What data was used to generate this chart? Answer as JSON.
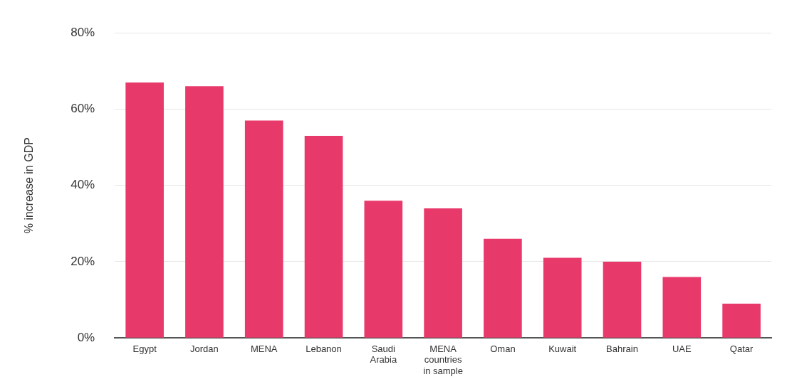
{
  "chart_data": {
    "type": "bar",
    "ylabel": "% increase in GDP",
    "categories": [
      "Egypt",
      "Jordan",
      "MENA",
      "Lebanon",
      "Saudi Arabia",
      "MENA countries in sample",
      "Oman",
      "Kuwait",
      "Bahrain",
      "UAE",
      "Qatar"
    ],
    "values": [
      67,
      66,
      57,
      53,
      36,
      34,
      26,
      21,
      20,
      16,
      9
    ],
    "color": "#e8396b",
    "ylim": [
      0,
      80
    ],
    "yticks": [
      {
        "value": 0,
        "label": "0%"
      },
      {
        "value": 20,
        "label": "20%"
      },
      {
        "value": 40,
        "label": "40%"
      },
      {
        "value": 60,
        "label": "60%"
      },
      {
        "value": 80,
        "label": "80%"
      }
    ],
    "grid": "y",
    "legend": false
  }
}
